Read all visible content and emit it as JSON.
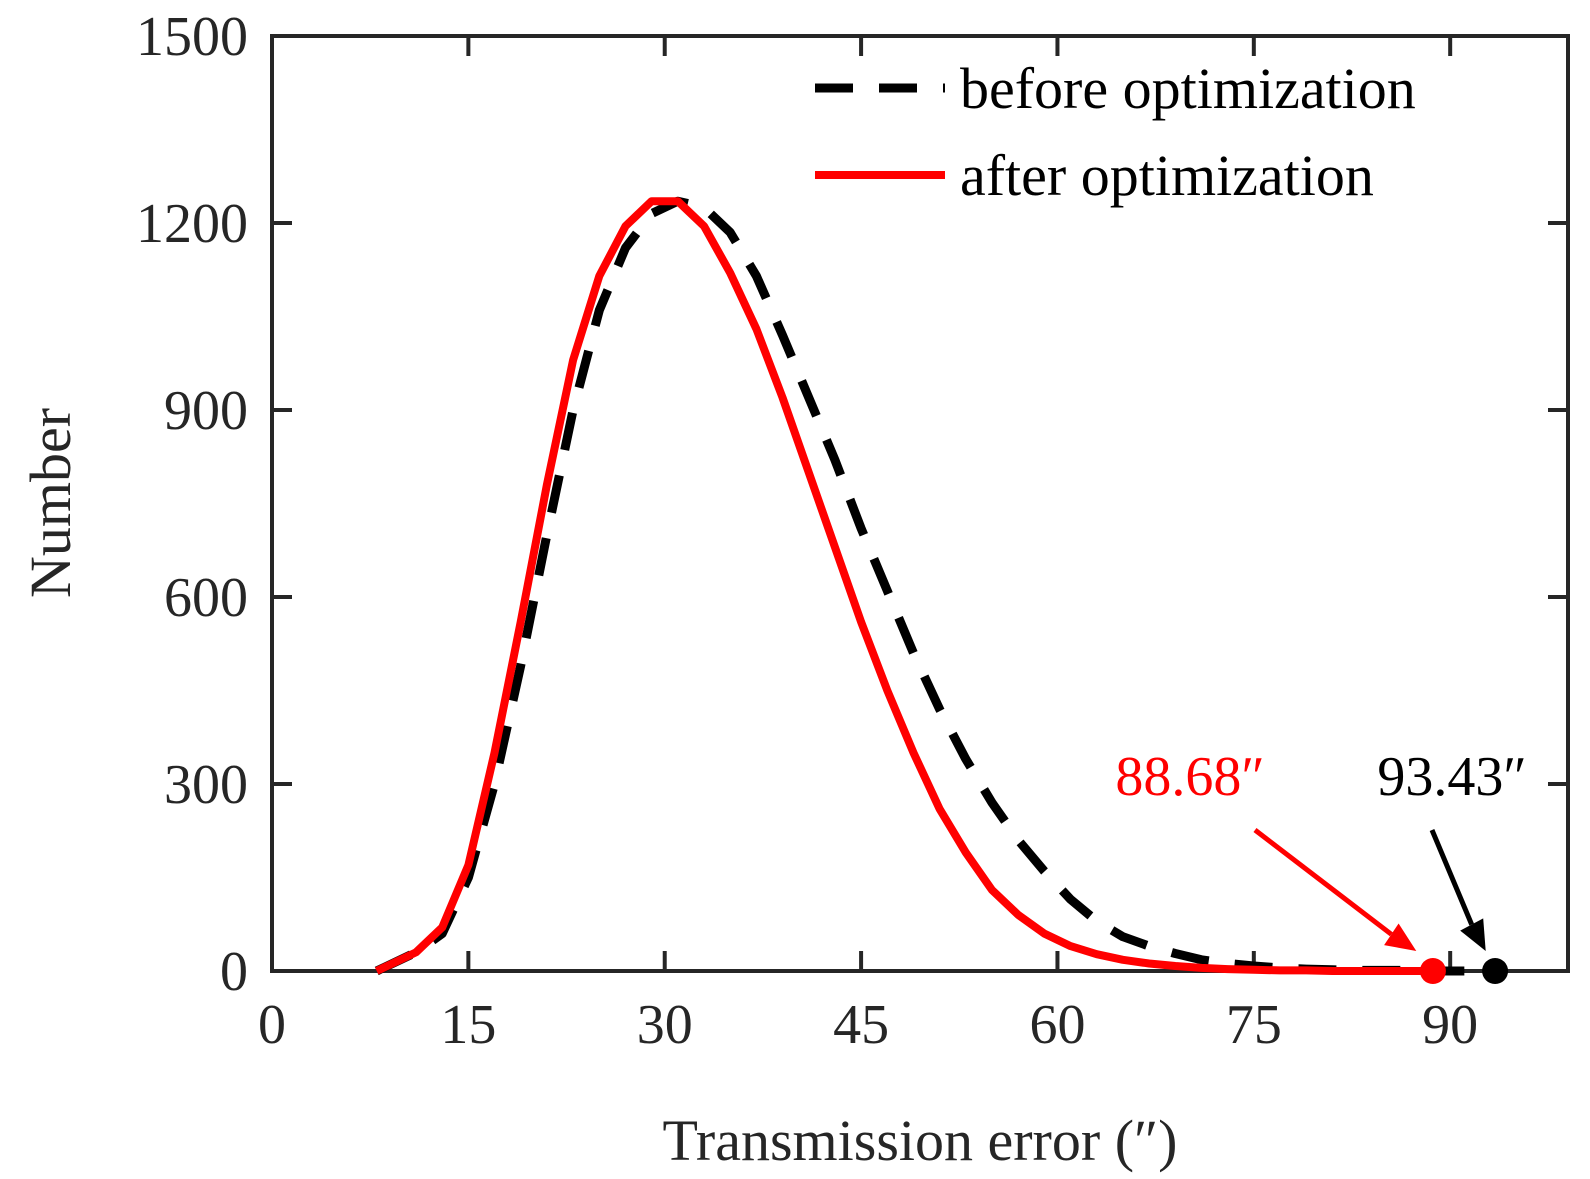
{
  "chart_data": {
    "type": "line",
    "title": "",
    "xlabel": "Transmission error (″)",
    "ylabel": "Number",
    "xlim": [
      0,
      99
    ],
    "ylim": [
      0,
      1500
    ],
    "xticks": [
      0,
      15,
      30,
      45,
      60,
      75,
      90
    ],
    "yticks": [
      0,
      300,
      600,
      900,
      1200,
      1500
    ],
    "grid": false,
    "legend_position": "top-right",
    "series": [
      {
        "name": "before optimization",
        "color": "#000000",
        "style": "dashed",
        "x": [
          8,
          11,
          13,
          15,
          17,
          19,
          21,
          23,
          25,
          27,
          29,
          31,
          33,
          35,
          37,
          39,
          41,
          43,
          45,
          47,
          49,
          51,
          53,
          55,
          57,
          59,
          61,
          63,
          65,
          67,
          69,
          71,
          73,
          75,
          77,
          79,
          81,
          83,
          85,
          87,
          89,
          91,
          93.43
        ],
        "y": [
          0,
          30,
          60,
          150,
          300,
          490,
          700,
          900,
          1060,
          1160,
          1215,
          1235,
          1225,
          1185,
          1115,
          1020,
          920,
          820,
          710,
          610,
          510,
          420,
          340,
          270,
          210,
          160,
          115,
          80,
          55,
          40,
          28,
          18,
          12,
          8,
          5,
          3,
          2,
          1,
          1,
          1,
          0,
          0,
          0
        ]
      },
      {
        "name": "after optimization",
        "color": "#ff0000",
        "style": "solid",
        "x": [
          8,
          11,
          13,
          15,
          17,
          19,
          21,
          23,
          25,
          27,
          29,
          31,
          33,
          35,
          37,
          39,
          41,
          43,
          45,
          47,
          49,
          51,
          53,
          55,
          57,
          59,
          61,
          63,
          65,
          67,
          69,
          71,
          73,
          75,
          77,
          79,
          81,
          83,
          85,
          87,
          88.68
        ],
        "y": [
          0,
          30,
          70,
          170,
          350,
          560,
          780,
          980,
          1115,
          1195,
          1235,
          1235,
          1195,
          1120,
          1030,
          920,
          800,
          680,
          560,
          450,
          350,
          260,
          190,
          130,
          90,
          60,
          40,
          27,
          18,
          12,
          8,
          5,
          3,
          2,
          1,
          1,
          0,
          0,
          0,
          0,
          0
        ]
      }
    ],
    "markers": [
      {
        "series": "after optimization",
        "x": 88.68,
        "y": 0,
        "label": "88.68″",
        "color": "#ff0000"
      },
      {
        "series": "before optimization",
        "x": 93.43,
        "y": 0,
        "label": "93.43″",
        "color": "#000000"
      }
    ]
  }
}
